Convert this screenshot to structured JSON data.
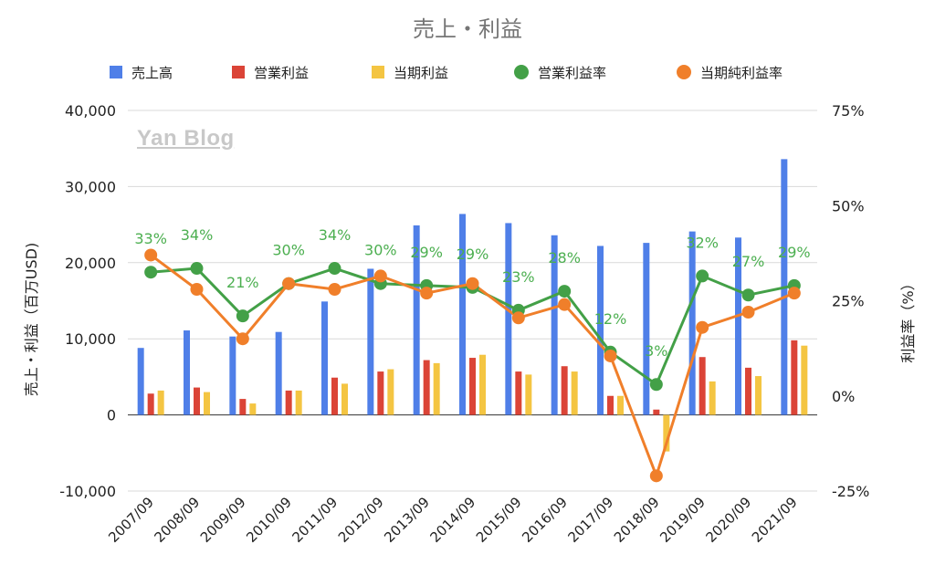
{
  "chart_data": {
    "type": "bar+line",
    "title": "売上・利益",
    "categories": [
      "2007/09",
      "2008/09",
      "2009/09",
      "2010/09",
      "2011/09",
      "2012/09",
      "2013/09",
      "2014/09",
      "2015/09",
      "2016/09",
      "2017/09",
      "2018/09",
      "2019/09",
      "2020/09",
      "2021/09"
    ],
    "bar_series": [
      {
        "name": "売上高",
        "color": "#4f7fe8",
        "values": [
          8800,
          11100,
          10300,
          10900,
          14900,
          19200,
          24900,
          26400,
          25200,
          23600,
          22200,
          22600,
          24100,
          23300,
          33600
        ]
      },
      {
        "name": "営業利益",
        "color": "#db4437",
        "values": [
          2800,
          3600,
          2100,
          3200,
          4900,
          5700,
          7200,
          7500,
          5700,
          6400,
          2500,
          700,
          7600,
          6200,
          9800
        ]
      },
      {
        "name": "当期利益",
        "color": "#f4c542",
        "values": [
          3200,
          3000,
          1500,
          3200,
          4100,
          6000,
          6800,
          7900,
          5300,
          5700,
          2500,
          -4800,
          4400,
          5100,
          9100
        ]
      }
    ],
    "line_series": [
      {
        "name": "営業利益率",
        "color": "#43a047",
        "values": [
          32.5,
          33.5,
          21,
          29.5,
          33.5,
          29.5,
          29,
          28.5,
          22.5,
          27.5,
          11.5,
          3,
          31.5,
          26.5,
          29
        ]
      },
      {
        "name": "当期純利益率",
        "color": "#f07f2a",
        "values": [
          37,
          28,
          15,
          29.5,
          28,
          31.5,
          27,
          29.5,
          20.5,
          24,
          10.5,
          -21,
          18,
          22,
          27
        ]
      }
    ],
    "data_labels": [
      "33%",
      "34%",
      "21%",
      "30%",
      "34%",
      "30%",
      "29%",
      "29%",
      "23%",
      "28%",
      "12%",
      "3%",
      "32%",
      "27%",
      "29%"
    ],
    "left_axis": {
      "label": "売上・利益（百万USD)",
      "range": [
        -10000,
        40000
      ],
      "ticks": [
        "-10,000",
        "0",
        "10,000",
        "20,000",
        "30,000",
        "40,000"
      ]
    },
    "right_axis": {
      "label": "利益率（%）",
      "range": [
        -25,
        75
      ],
      "ticks": [
        "-25%",
        "0%",
        "25%",
        "50%",
        "75%"
      ]
    },
    "grid": true,
    "legend_position": "top"
  },
  "watermark": "Yan Blog"
}
